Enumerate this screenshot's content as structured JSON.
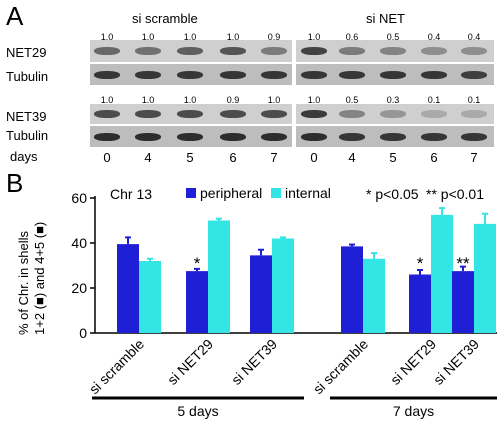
{
  "panel_a": {
    "letter": "A",
    "group_labels": [
      "si scramble",
      "si NET"
    ],
    "rows": [
      {
        "name": "NET29",
        "quant": [
          "1.0",
          "1.0",
          "1.0",
          "1.0",
          "0.9",
          "1.0",
          "0.6",
          "0.5",
          "0.4",
          "0.4"
        ]
      },
      {
        "name": "Tubulin",
        "quant": []
      },
      {
        "name": "NET39",
        "quant": [
          "1.0",
          "1.0",
          "1.0",
          "0.9",
          "1.0",
          "1.0",
          "0.5",
          "0.3",
          "0.1",
          "0.1"
        ]
      },
      {
        "name": "Tubulin",
        "quant": []
      }
    ],
    "days_label": "days",
    "days": [
      "0",
      "4",
      "5",
      "6",
      "7",
      "0",
      "4",
      "5",
      "6",
      "7"
    ]
  },
  "panel_b": {
    "letter": "B",
    "chart_data": {
      "type": "bar",
      "annotation": "Chr 13",
      "ylabel": "% of Chr. in shells 1+2 (■) and 4+5 (■)",
      "ylim": [
        0,
        60
      ],
      "yticks": [
        "0",
        "20",
        "40",
        "60"
      ],
      "categories": [
        "si scramble",
        "si NET29",
        "si NET39",
        "si scramble",
        "si NET29",
        "si NET39"
      ],
      "groups": [
        {
          "label": "5 days",
          "categories": [
            0,
            1,
            2
          ]
        },
        {
          "label": "7 days",
          "categories": [
            3,
            4,
            5
          ]
        }
      ],
      "series": [
        {
          "name": "peripheral",
          "color": "#1f1fd6",
          "values": [
            39.5,
            27.5,
            34.5,
            38.5,
            26,
            27.5
          ],
          "errors": [
            3,
            1,
            2.5,
            0.8,
            2,
            2
          ]
        },
        {
          "name": "internal",
          "color": "#33e5e5",
          "values": [
            32,
            50,
            42,
            33,
            52.5,
            48.5
          ],
          "errors": [
            1,
            0.8,
            0.5,
            2.5,
            3,
            4.5
          ]
        }
      ],
      "significance": [
        {
          "category": 1,
          "mark": "*"
        },
        {
          "category": 4,
          "mark": "*"
        },
        {
          "category": 5,
          "mark": "**"
        }
      ],
      "sig_legend": [
        {
          "mark": "*",
          "text": "p<0.05"
        },
        {
          "mark": "**",
          "text": "p<0.01"
        }
      ]
    }
  }
}
